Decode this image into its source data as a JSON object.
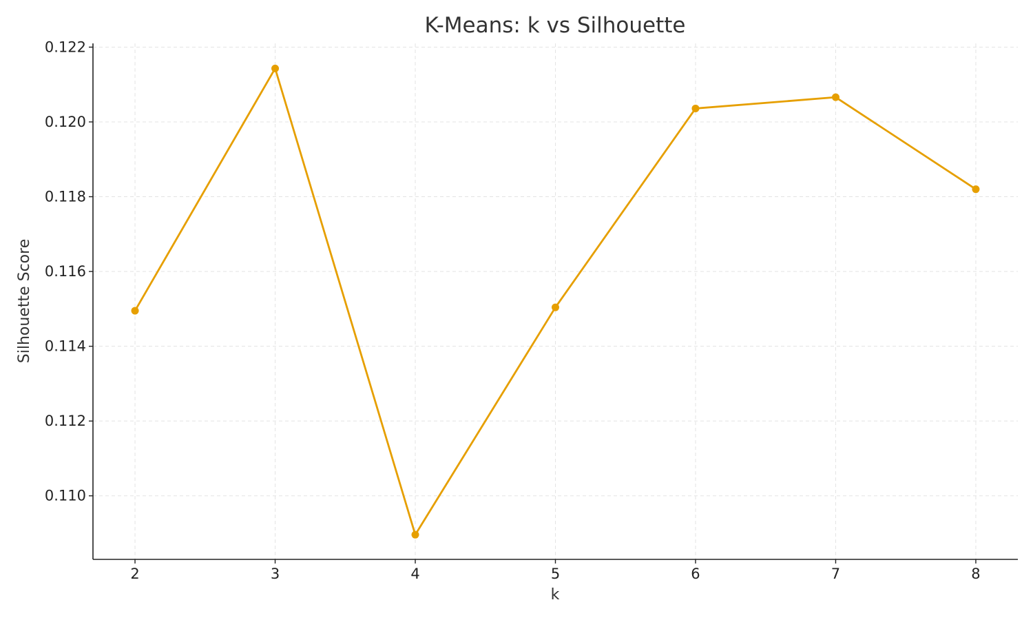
{
  "chart_data": {
    "type": "line",
    "title": "K-Means: k vs Silhouette",
    "xlabel": "k",
    "ylabel": "Silhouette Score",
    "x": [
      2,
      3,
      4,
      5,
      6,
      7,
      8
    ],
    "series": [
      {
        "values": [
          0.11495,
          0.12143,
          0.10896,
          0.11504,
          0.12036,
          0.12066,
          0.1182
        ],
        "color": "#e69f00"
      }
    ],
    "xlim": [
      1.7,
      8.3
    ],
    "ylim": [
      0.1083,
      0.1221
    ],
    "x_ticks": [
      2,
      3,
      4,
      5,
      6,
      7,
      8
    ],
    "y_ticks": [
      "0.110",
      "0.112",
      "0.114",
      "0.116",
      "0.118",
      "0.120",
      "0.122"
    ],
    "grid": true,
    "legend": "none"
  }
}
